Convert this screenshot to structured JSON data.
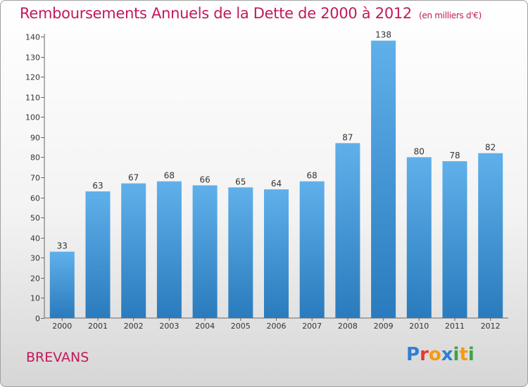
{
  "header": {
    "title": "Remboursements Annuels de la Dette de 2000 à 2012",
    "unit": "(en milliers d'€)"
  },
  "footer": {
    "commune": "BREVANS",
    "logo_text": "Proxiti",
    "logo_colors": [
      "#2e7fd1",
      "#e53935",
      "#f39c12",
      "#2e7fd1",
      "#43a047",
      "#f39c12",
      "#43a047"
    ]
  },
  "chart_data": {
    "type": "bar",
    "title": "Remboursements Annuels de la Dette de 2000 à 2012",
    "subtitle": "(en milliers d'€)",
    "xlabel": "",
    "ylabel": "",
    "categories": [
      "2000",
      "2001",
      "2002",
      "2003",
      "2004",
      "2005",
      "2006",
      "2007",
      "2008",
      "2009",
      "2010",
      "2011",
      "2012"
    ],
    "values": [
      33,
      63,
      67,
      68,
      66,
      65,
      64,
      68,
      87,
      138,
      80,
      78,
      82
    ],
    "ylim": [
      0,
      140
    ],
    "yticks": [
      0,
      10,
      20,
      30,
      40,
      50,
      60,
      70,
      80,
      90,
      100,
      110,
      120,
      130,
      140
    ],
    "grid": false,
    "data_labels": true,
    "bar_color_top": "#5fb0ea",
    "bar_color_bottom": "#2a7bbd"
  }
}
